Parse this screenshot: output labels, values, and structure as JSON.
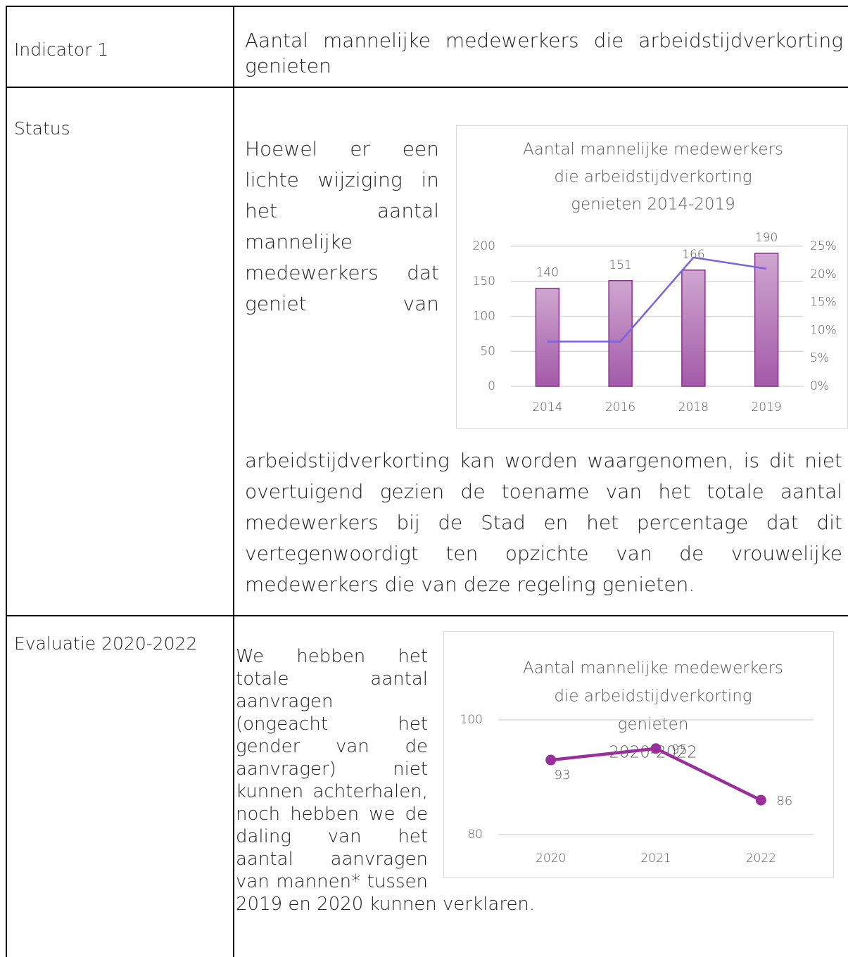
{
  "rows": [
    {
      "label": "Indicator 1",
      "text": "Aantal mannelijke medewerkers die arbeidstijdverkorting genieten"
    },
    {
      "label": "Status",
      "text": "Hoewel er een lichte wijziging in het aantal mannelijke medewerkers dat geniet van arbeidstijdverkorting kan worden waargenomen, is dit niet overtuigend gezien de toename van het totale aantal medewerkers bij de Stad en het percentage dat dit vertegenwoordigt ten opzichte van de vrouwelijke medewerkers die van deze regeling genieten."
    },
    {
      "label": "Evaluatie 2020-2022",
      "text": "We hebben het totale aantal aanvragen (ongeacht het gender van de aanvrager) niet kunnen achterhalen, noch hebben we de daling van het aantal aanvragen van mannen* tussen 2019 en 2020 kunnen verklaren."
    }
  ],
  "chart_data": [
    {
      "type": "bar",
      "title": [
        "Aantal mannelijke medewerkers",
        "die arbeidstijdverkorting",
        "genieten 2014-2019"
      ],
      "categories": [
        "2014",
        "2016",
        "2018",
        "2019"
      ],
      "series": [
        {
          "type": "bar",
          "color": "#b47cb9",
          "values": [
            140,
            151,
            166,
            190
          ]
        },
        {
          "type": "line",
          "axis": "y2",
          "color": "#7a62de",
          "values": [
            8,
            8,
            23,
            21
          ]
        }
      ],
      "ylim": [
        0,
        200
      ],
      "yticks": [
        0,
        50,
        100,
        150,
        200
      ],
      "y2lim": [
        0,
        25
      ],
      "y2ticks": [
        {
          "value": 0,
          "label": "0%"
        },
        {
          "value": 5,
          "label": "5%"
        },
        {
          "value": 10,
          "label": "10%"
        },
        {
          "value": 15,
          "label": "15%"
        },
        {
          "value": 20,
          "label": "20%"
        },
        {
          "value": 25,
          "label": "25%"
        }
      ],
      "grid": true
    },
    {
      "type": "line",
      "title": [
        "Aantal mannelijke medewerkers",
        "die arbeidstijdverkorting",
        "genieten",
        "2020-2022"
      ],
      "categories": [
        "2020",
        "2021",
        "2022"
      ],
      "series": [
        {
          "type": "line",
          "color": "#9a2f9c",
          "values": [
            93,
            95,
            86
          ]
        }
      ],
      "ylim": [
        80,
        100
      ],
      "yticks": [
        80,
        100
      ],
      "grid": true
    }
  ]
}
